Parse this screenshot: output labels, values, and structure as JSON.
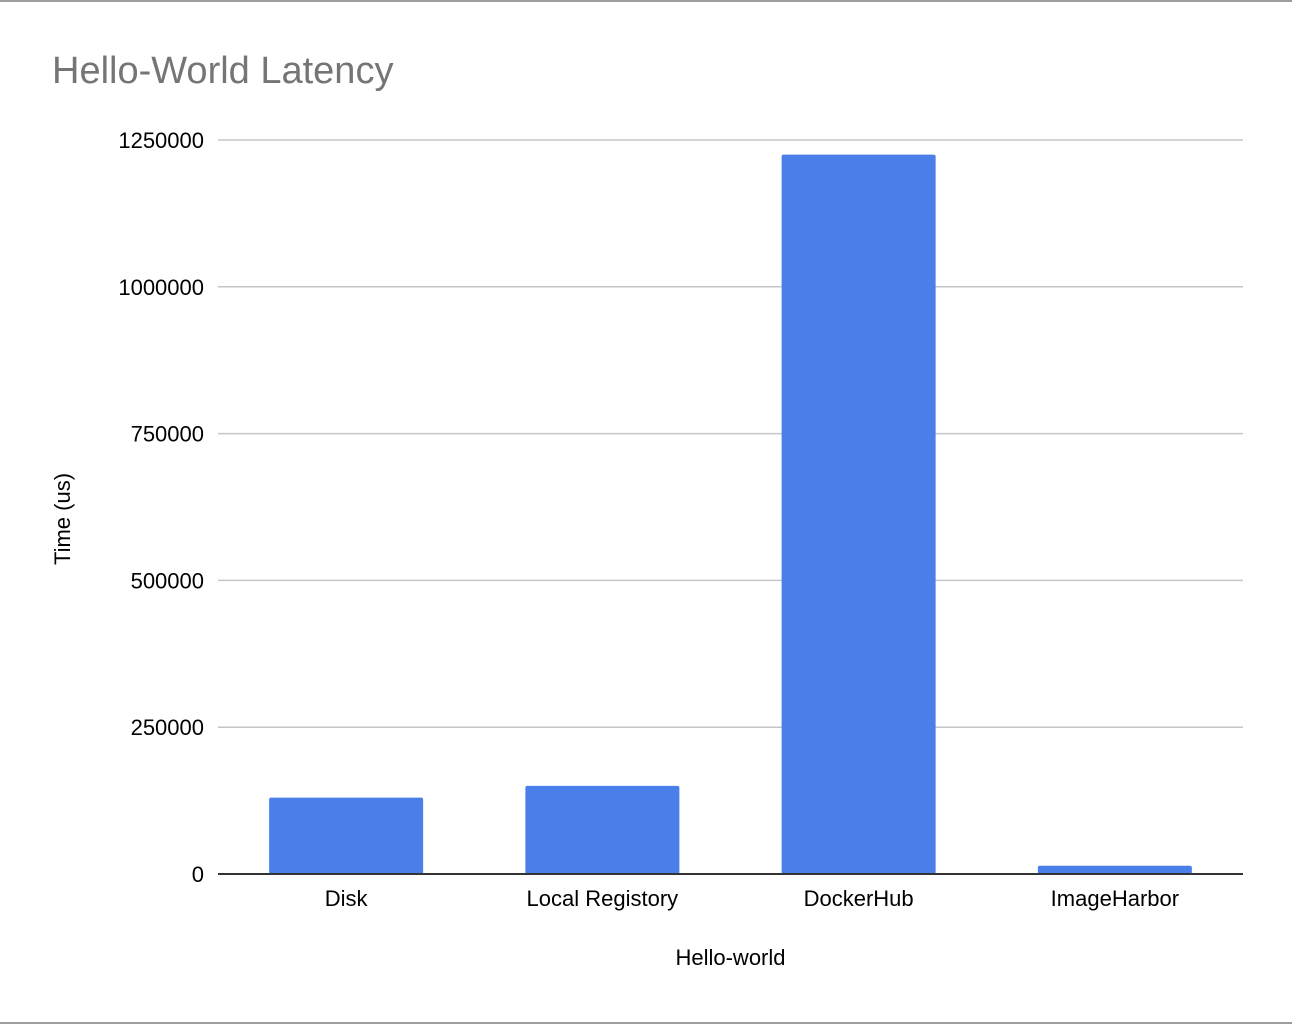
{
  "chart_data": {
    "type": "bar",
    "title": "Hello-World Latency",
    "xlabel": "Hello-world",
    "ylabel": "Time (us)",
    "categories": [
      "Disk",
      "Local Registory",
      "DockerHub",
      "ImageHarbor"
    ],
    "values": [
      130000,
      150000,
      1225000,
      14000
    ],
    "ylim": [
      0,
      1250000
    ],
    "yticks": [
      0,
      250000,
      500000,
      750000,
      1000000,
      1250000
    ],
    "ytick_labels": [
      "0",
      "250000",
      "500000",
      "750000",
      "1000000",
      "1250000"
    ],
    "grid": true,
    "legend": "none",
    "bar_color": "#4a7fe9"
  }
}
